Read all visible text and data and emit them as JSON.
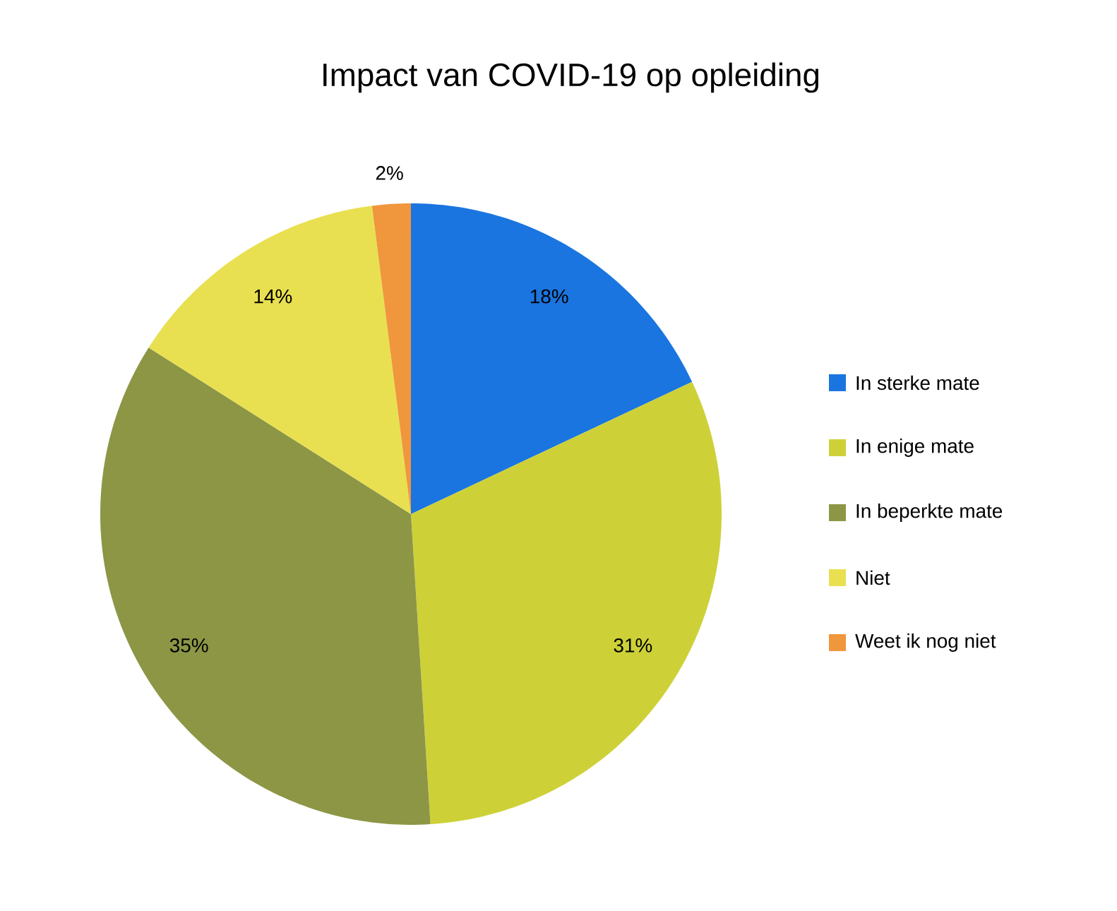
{
  "chart_data": {
    "type": "pie",
    "title": "Impact van COVID-19 op opleiding",
    "categories": [
      "In sterke mate",
      "In enige mate",
      "In beperkte mate",
      "Niet",
      "Weet ik nog niet"
    ],
    "values": [
      18,
      31,
      35,
      14,
      2
    ],
    "value_labels": [
      "18%",
      "31%",
      "35%",
      "14%",
      "2%"
    ],
    "colors": [
      "#1a75e0",
      "#cdd137",
      "#8c9645",
      "#e8e050",
      "#f0963c"
    ],
    "legend": "right"
  }
}
